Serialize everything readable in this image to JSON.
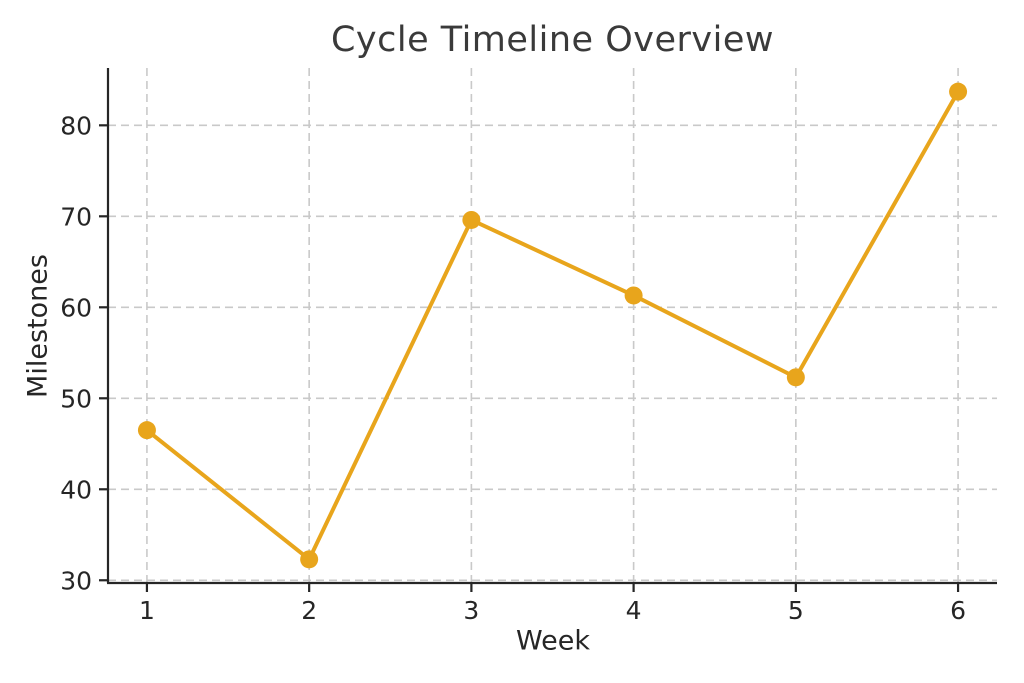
{
  "chart_data": {
    "type": "line",
    "title": "Cycle Timeline Overview",
    "xlabel": "Week",
    "ylabel": "Milestones",
    "x": [
      1,
      2,
      3,
      4,
      5,
      6
    ],
    "series": [
      {
        "name": "Milestones",
        "values": [
          46.5,
          32.3,
          69.6,
          61.3,
          52.3,
          83.7
        ]
      }
    ],
    "xticks": [
      1,
      2,
      3,
      4,
      5,
      6
    ],
    "yticks": [
      30,
      40,
      50,
      60,
      70,
      80
    ],
    "xlim": [
      0.76,
      6.24
    ],
    "ylim": [
      29.7,
      86.3
    ],
    "grid": true,
    "grid_style": "dashed",
    "legend_position": "none",
    "marker": "circle",
    "colors": {
      "line": "#E8A51C",
      "marker": "#E8A51C",
      "grid": "#c9c9c9",
      "axis": "#262626",
      "title_text": "#3a3a3a",
      "tick_text": "#262626",
      "background": "#ffffff"
    }
  }
}
